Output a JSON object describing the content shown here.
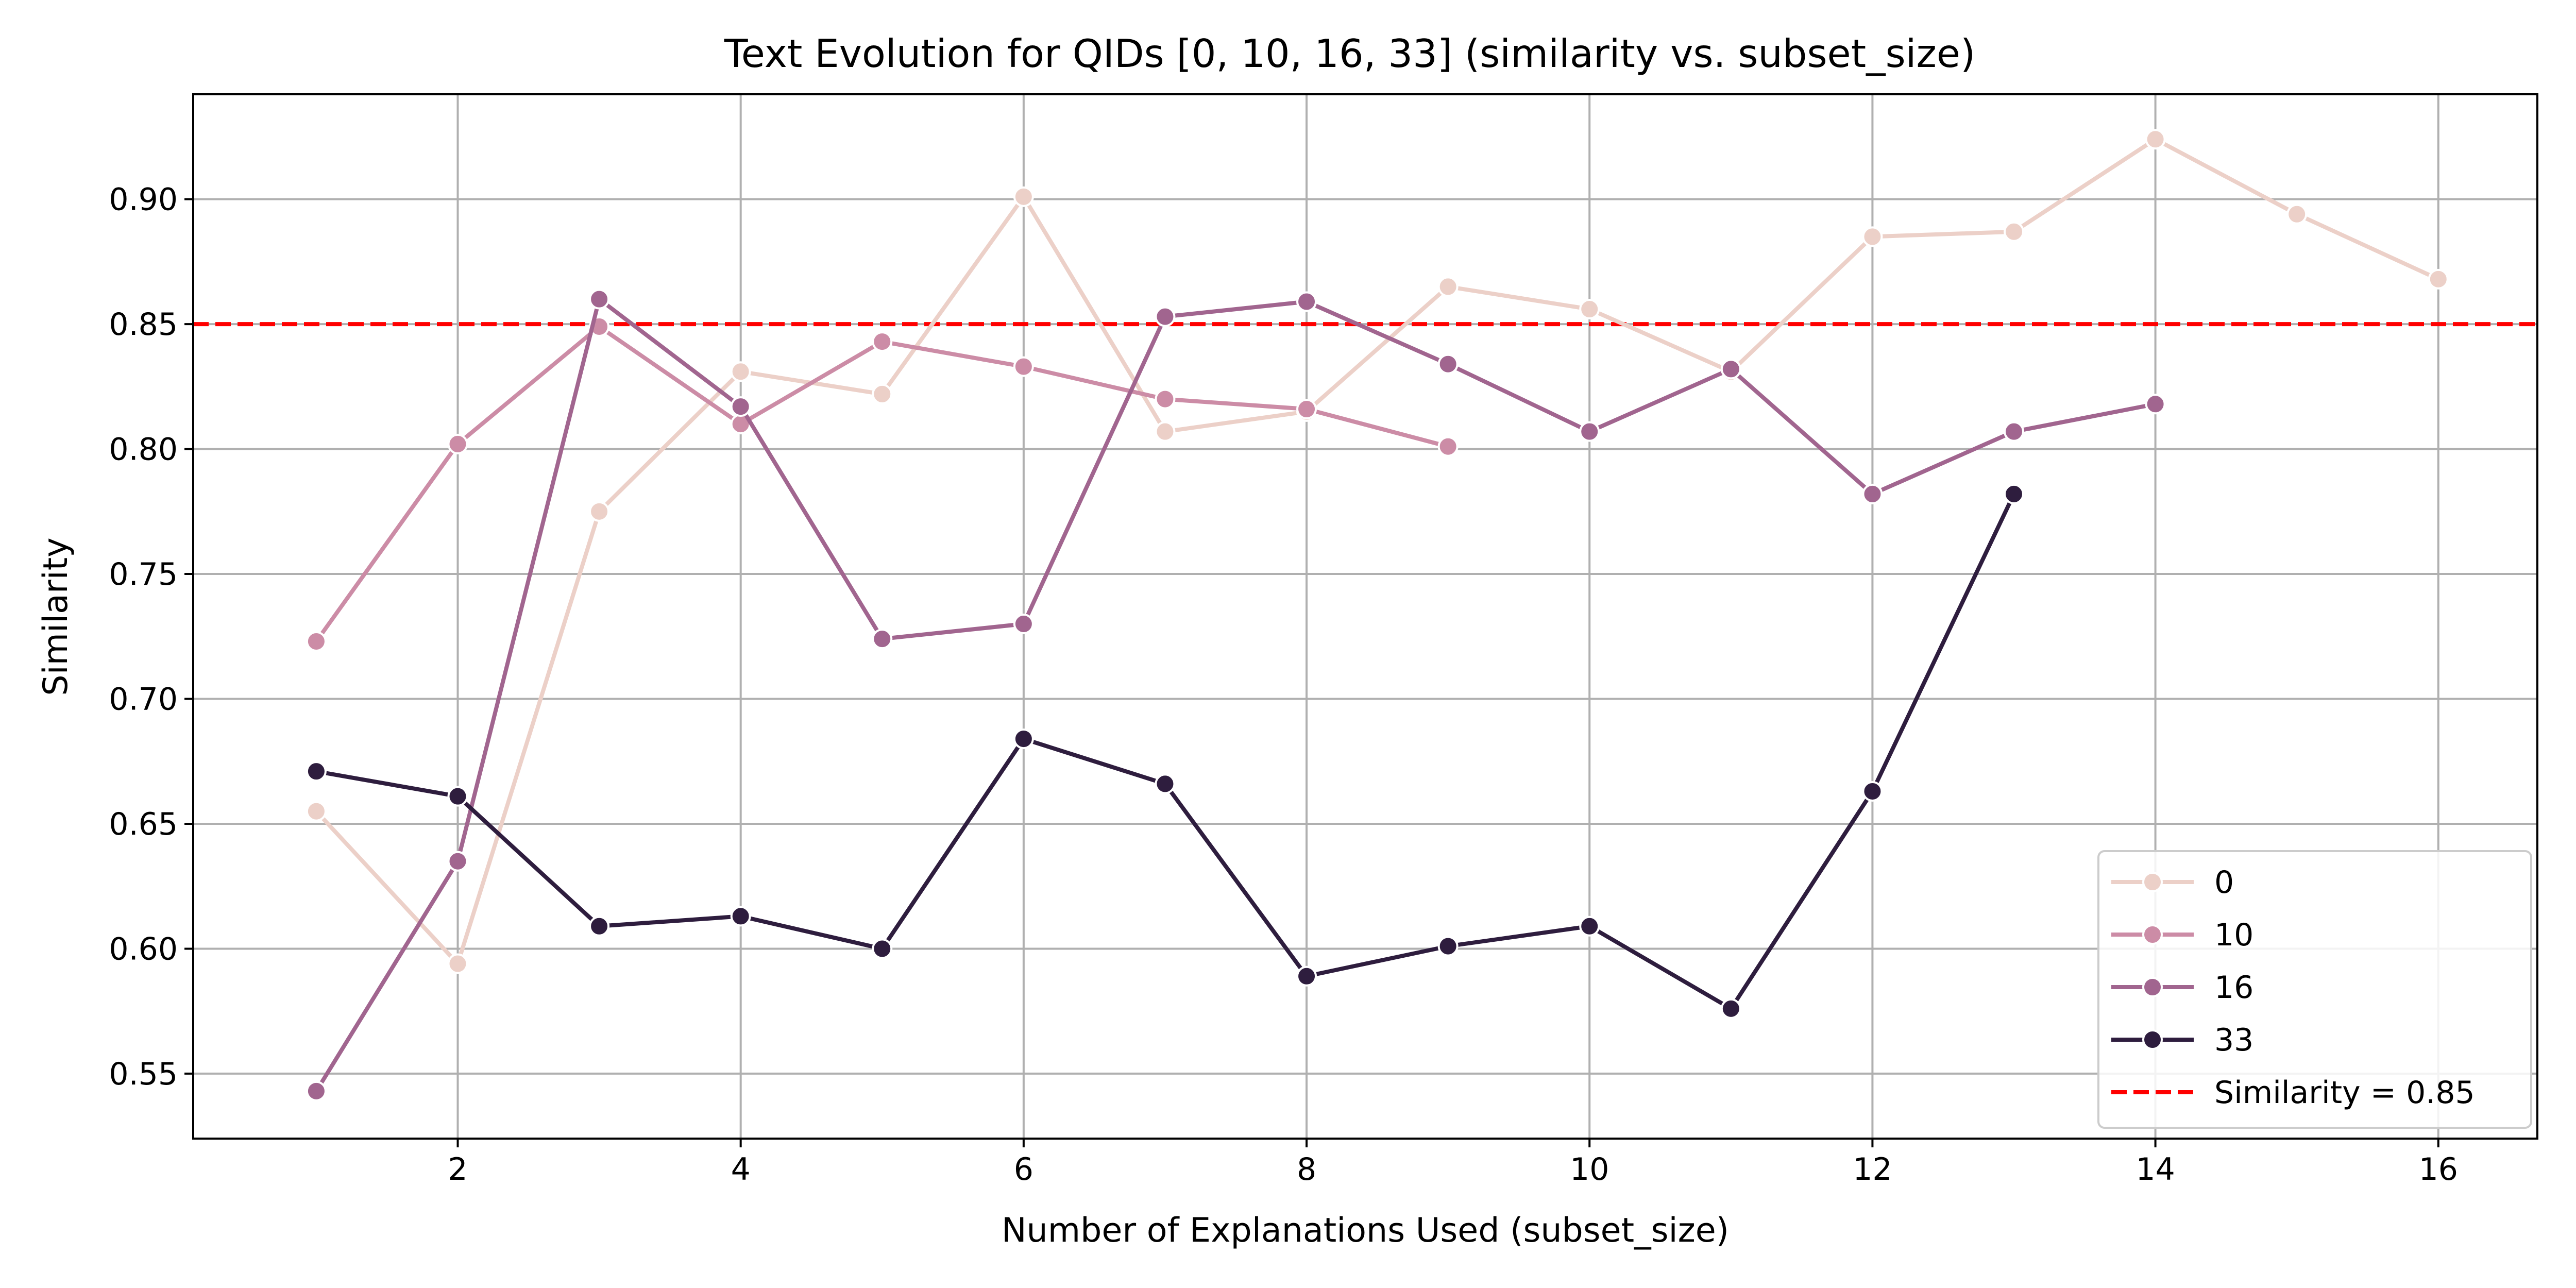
{
  "chart_data": {
    "type": "line",
    "title": "Text Evolution for QIDs [0, 10, 16, 33] (similarity vs. subset_size)",
    "xlabel": "Number of Explanations Used (subset_size)",
    "ylabel": "Similarity",
    "xlim": [
      0.13,
      16.7
    ],
    "ylim": [
      0.524,
      0.942
    ],
    "xticks": [
      2,
      4,
      6,
      8,
      10,
      12,
      14,
      16
    ],
    "xtick_labels": [
      "2",
      "4",
      "6",
      "8",
      "10",
      "12",
      "14",
      "16"
    ],
    "yticks": [
      0.55,
      0.6,
      0.65,
      0.7,
      0.75,
      0.8,
      0.85,
      0.9
    ],
    "ytick_labels": [
      "0.55",
      "0.60",
      "0.65",
      "0.70",
      "0.75",
      "0.80",
      "0.85",
      "0.90"
    ],
    "grid": true,
    "legend_position": "bottom-right",
    "series": [
      {
        "name": "0",
        "color": "#ecd0c8",
        "x": [
          1,
          2,
          3,
          4,
          5,
          6,
          7,
          8,
          9,
          10,
          11,
          12,
          13,
          14,
          15,
          16
        ],
        "y": [
          0.655,
          0.594,
          0.775,
          0.831,
          0.822,
          0.901,
          0.807,
          0.815,
          0.865,
          0.856,
          0.831,
          0.885,
          0.887,
          0.924,
          0.894,
          0.868
        ]
      },
      {
        "name": "10",
        "color": "#cc8ca6",
        "x": [
          1,
          2,
          3,
          4,
          5,
          6,
          7,
          8,
          9
        ],
        "y": [
          0.723,
          0.802,
          0.849,
          0.81,
          0.843,
          0.833,
          0.82,
          0.816,
          0.801
        ]
      },
      {
        "name": "16",
        "color": "#a1658f",
        "x": [
          1,
          2,
          3,
          4,
          5,
          6,
          7,
          8,
          9,
          10,
          11,
          12,
          13,
          14
        ],
        "y": [
          0.543,
          0.635,
          0.86,
          0.817,
          0.724,
          0.73,
          0.853,
          0.859,
          0.834,
          0.807,
          0.832,
          0.782,
          0.807,
          0.818
        ]
      },
      {
        "name": "33",
        "color": "#2e1d3e",
        "x": [
          1,
          2,
          3,
          4,
          5,
          6,
          7,
          8,
          9,
          10,
          11,
          12,
          13
        ],
        "y": [
          0.671,
          0.661,
          0.609,
          0.613,
          0.6,
          0.684,
          0.666,
          0.589,
          0.601,
          0.609,
          0.576,
          0.663,
          0.782
        ]
      }
    ],
    "reference_line": {
      "label": "Similarity = 0.85",
      "y": 0.85,
      "color": "#ff0000",
      "style": "dashed"
    }
  }
}
